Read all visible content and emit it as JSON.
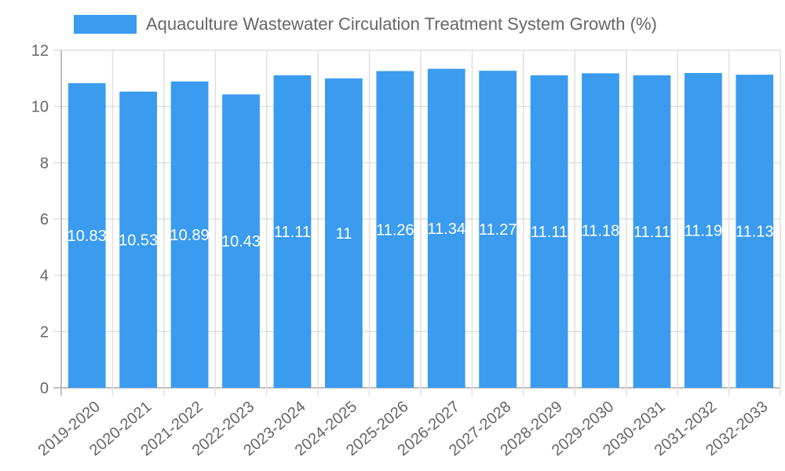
{
  "chart_data": {
    "type": "bar",
    "title": "",
    "legend": [
      "Aquaculture Wastewater Circulation Treatment System Growth (%)"
    ],
    "legend_position": "top",
    "categories": [
      "2019-2020",
      "2020-2021",
      "2021-2022",
      "2022-2023",
      "2023-2024",
      "2024-2025",
      "2025-2026",
      "2026-2027",
      "2027-2028",
      "2028-2029",
      "2029-2030",
      "2030-2031",
      "2031-2032",
      "2032-2033"
    ],
    "series": [
      {
        "name": "Aquaculture Wastewater Circulation Treatment System Growth (%)",
        "values": [
          10.83,
          10.53,
          10.89,
          10.43,
          11.11,
          11,
          11.26,
          11.34,
          11.27,
          11.11,
          11.18,
          11.11,
          11.19,
          11.13
        ],
        "color": "#3a9bef"
      }
    ],
    "xlabel": "",
    "ylabel": "",
    "ylim": [
      0,
      12
    ],
    "yticks": [
      0,
      2,
      4,
      6,
      8,
      10,
      12
    ],
    "grid": true,
    "data_labels": true
  },
  "legend": {
    "label": "Aquaculture Wastewater Circulation Treatment System Growth (%)",
    "color": "#3a9bef"
  }
}
